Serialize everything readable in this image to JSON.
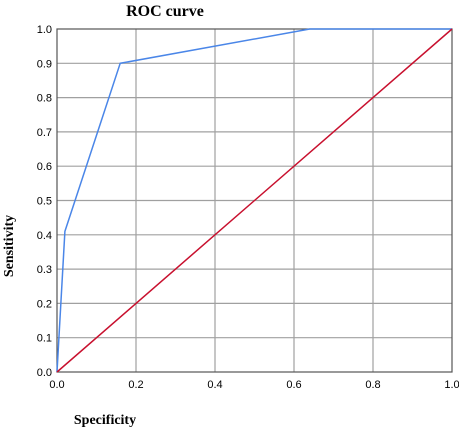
{
  "chart_data": {
    "type": "line",
    "title": "ROC curve",
    "xlabel": "Specificity",
    "ylabel": "Sensitivity",
    "xlim": [
      0.0,
      1.0
    ],
    "ylim": [
      0.0,
      1.0
    ],
    "x_ticks": [
      "0.0",
      "0.2",
      "0.4",
      "0.6",
      "0.8",
      "1.0"
    ],
    "y_ticks": [
      "0.0",
      "0.1",
      "0.2",
      "0.3",
      "0.4",
      "0.5",
      "0.6",
      "0.7",
      "0.8",
      "0.9",
      "1.0"
    ],
    "grid": true,
    "legend": false,
    "series": [
      {
        "color": "#4a86e8",
        "x": [
          0.0,
          0.02,
          0.16,
          0.64,
          1.0
        ],
        "y": [
          0.0,
          0.41,
          0.9,
          1.0,
          1.0
        ]
      },
      {
        "color": "#c8102e",
        "x": [
          0.0,
          1.0
        ],
        "y": [
          0.0,
          1.0
        ]
      }
    ]
  }
}
